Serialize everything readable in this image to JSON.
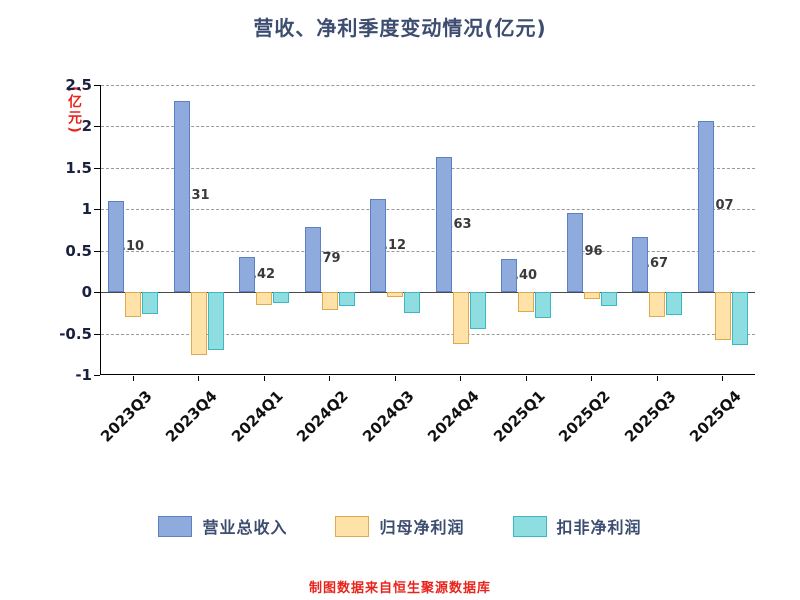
{
  "title": "营收、净利季度变动情况(亿元)",
  "y_axis_unit": "(亿元)",
  "footer": "制图数据来自恒生聚源数据库",
  "chart_data": {
    "type": "bar",
    "categories": [
      "2023Q3",
      "2023Q4",
      "2024Q1",
      "2024Q2",
      "2024Q3",
      "2024Q4",
      "2025Q1",
      "2025Q2",
      "2025Q3",
      "2025Q4"
    ],
    "series": [
      {
        "name": "营业总收入",
        "color": "#8faadc",
        "border_color": "#5b81c2",
        "values": [
          1.1,
          2.31,
          0.42,
          0.79,
          1.12,
          1.63,
          0.4,
          0.96,
          0.67,
          2.07
        ],
        "labels": [
          "1.10",
          "2.31",
          "0.42",
          "0.79",
          "1.12",
          "1.63",
          "0.40",
          "0.96",
          "0.67",
          "2.07"
        ]
      },
      {
        "name": "归母净利润",
        "color": "#ffe2a8",
        "border_color": "#dfa94f",
        "values": [
          -0.3,
          -0.76,
          -0.16,
          -0.21,
          -0.06,
          -0.62,
          -0.24,
          -0.08,
          -0.3,
          -0.58
        ]
      },
      {
        "name": "扣非净利润",
        "color": "#8edde0",
        "border_color": "#3cb8c4",
        "values": [
          -0.26,
          -0.7,
          -0.13,
          -0.17,
          -0.25,
          -0.45,
          -0.31,
          -0.17,
          -0.28,
          -0.64
        ]
      }
    ],
    "ylim": [
      -1,
      2.5
    ],
    "ytick_values": [
      2.5,
      2,
      1.5,
      1,
      0.5,
      0,
      -0.5,
      -1
    ],
    "ytick_labels": [
      "2.5",
      "2",
      "1.5",
      "1",
      "0.5",
      "0",
      "-0.5",
      "-1"
    ],
    "grid": true,
    "legend_position": "bottom"
  }
}
